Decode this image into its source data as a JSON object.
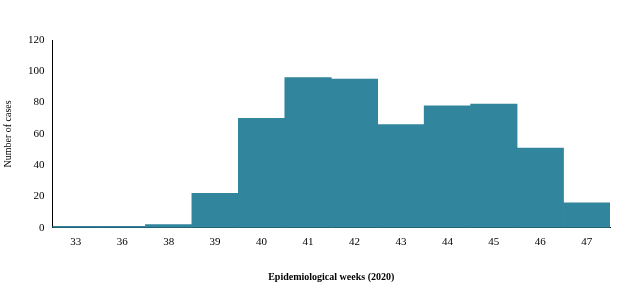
{
  "chart_data": {
    "type": "bar",
    "x_label": "Epidemiological weeks (2020)",
    "y_label": "Number of cases",
    "categories": [
      "33",
      "36",
      "38",
      "39",
      "40",
      "41",
      "42",
      "43",
      "44",
      "45",
      "46",
      "47"
    ],
    "values": [
      1,
      1,
      2,
      22,
      70,
      96,
      95,
      66,
      78,
      79,
      51,
      16
    ],
    "color": "#31859c",
    "ylim": [
      0,
      120
    ],
    "yticks": [
      0,
      20,
      40,
      60,
      80,
      100,
      120
    ],
    "grid": false
  }
}
